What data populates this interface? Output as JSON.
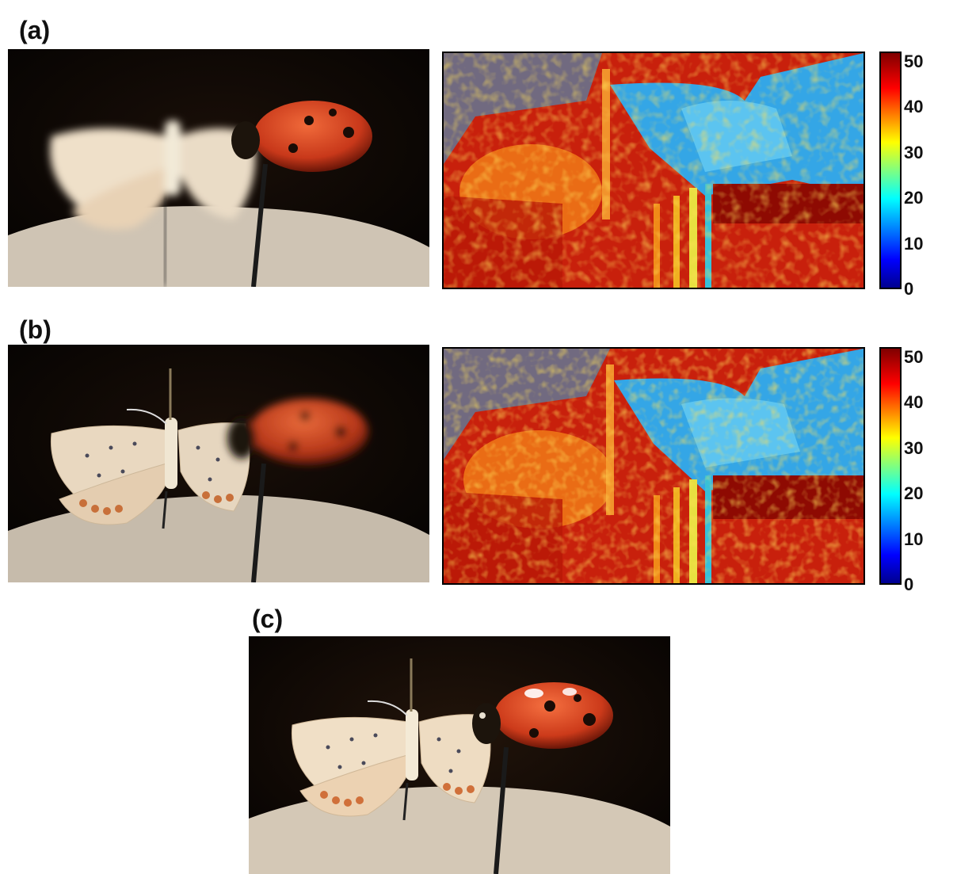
{
  "panels": {
    "a": {
      "label": "(a)"
    },
    "b": {
      "label": "(b)"
    },
    "c": {
      "label": "(c)"
    }
  },
  "colorbar": {
    "ticks": [
      "50",
      "40",
      "30",
      "20",
      "10",
      "0"
    ],
    "colormap": [
      "#00008f",
      "#0000ff",
      "#00ffff",
      "#ffff00",
      "#ff0000",
      "#800000"
    ]
  }
}
